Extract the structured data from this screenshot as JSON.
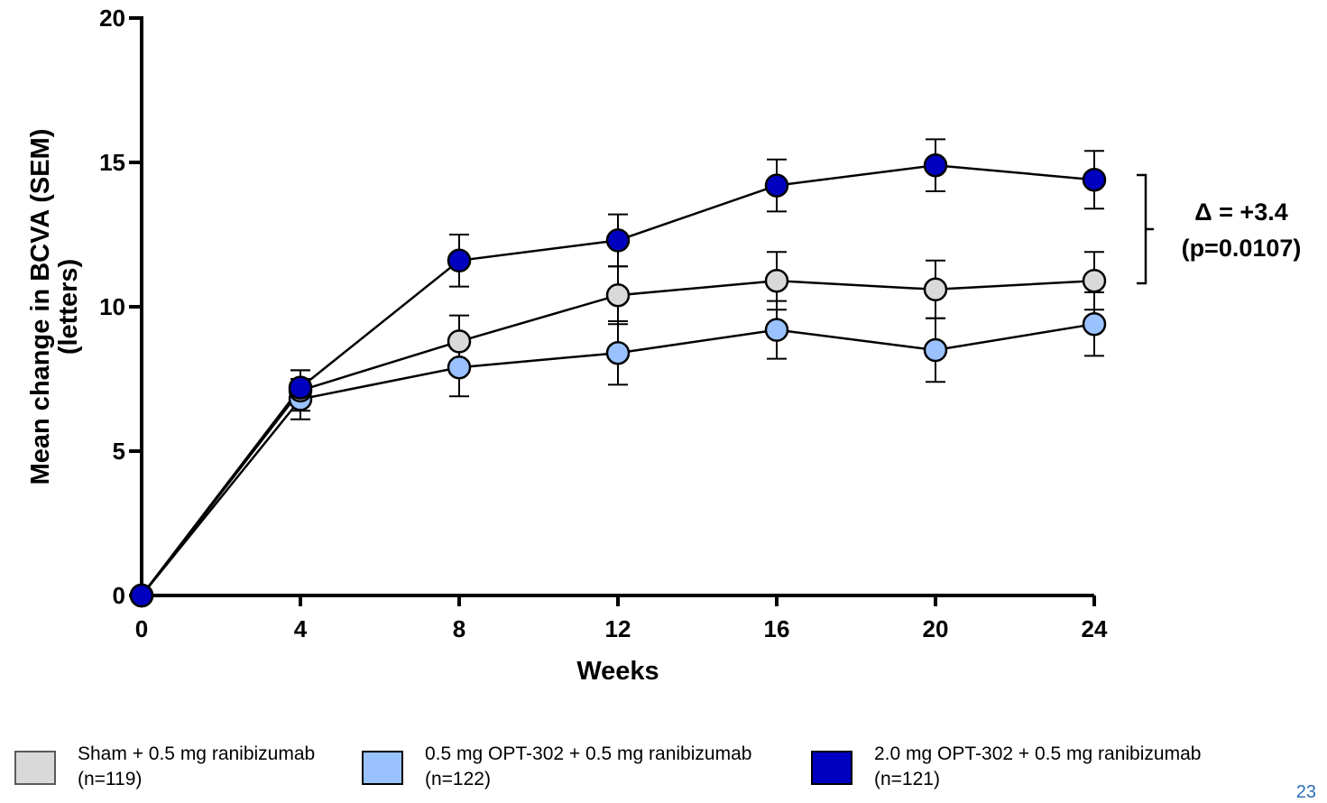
{
  "chart_data": {
    "type": "line",
    "title": "",
    "xlabel": "Weeks",
    "ylabel": [
      "Mean change in BCVA (SEM)",
      "(letters)"
    ],
    "xlim": [
      0,
      24
    ],
    "ylim": [
      0,
      20
    ],
    "xticks": [
      0,
      4,
      8,
      12,
      16,
      20,
      24
    ],
    "yticks": [
      0,
      5,
      10,
      15,
      20
    ],
    "grid": false,
    "legend_position": "bottom",
    "x": [
      0,
      4,
      8,
      12,
      16,
      20,
      24
    ],
    "series": [
      {
        "name": "Sham + 0.5 mg ranibizumab",
        "n": "(n=119)",
        "color": "#d9d9d9",
        "values": [
          0,
          7.1,
          8.8,
          10.4,
          10.9,
          10.6,
          10.9
        ],
        "sem": [
          0,
          0.7,
          0.9,
          1.0,
          1.0,
          1.0,
          1.0
        ]
      },
      {
        "name": "0.5 mg OPT-302 + 0.5 mg ranibizumab",
        "n": "(n=122)",
        "color": "#99c2ff",
        "values": [
          0,
          6.8,
          7.9,
          8.4,
          9.2,
          8.5,
          9.4
        ],
        "sem": [
          0,
          0.7,
          1.0,
          1.1,
          1.0,
          1.1,
          1.1
        ]
      },
      {
        "name": "2.0 mg OPT-302 + 0.5 mg ranibizumab",
        "n": "(n=121)",
        "color": "#0000c0",
        "values": [
          0,
          7.2,
          11.6,
          12.3,
          14.2,
          14.9,
          14.4
        ],
        "sem": [
          0,
          0.6,
          0.9,
          0.9,
          0.9,
          0.9,
          1.0
        ]
      }
    ],
    "annotation": {
      "line1": "Δ = +3.4",
      "line2": "(p=0.0107)"
    }
  },
  "page_number": "23"
}
